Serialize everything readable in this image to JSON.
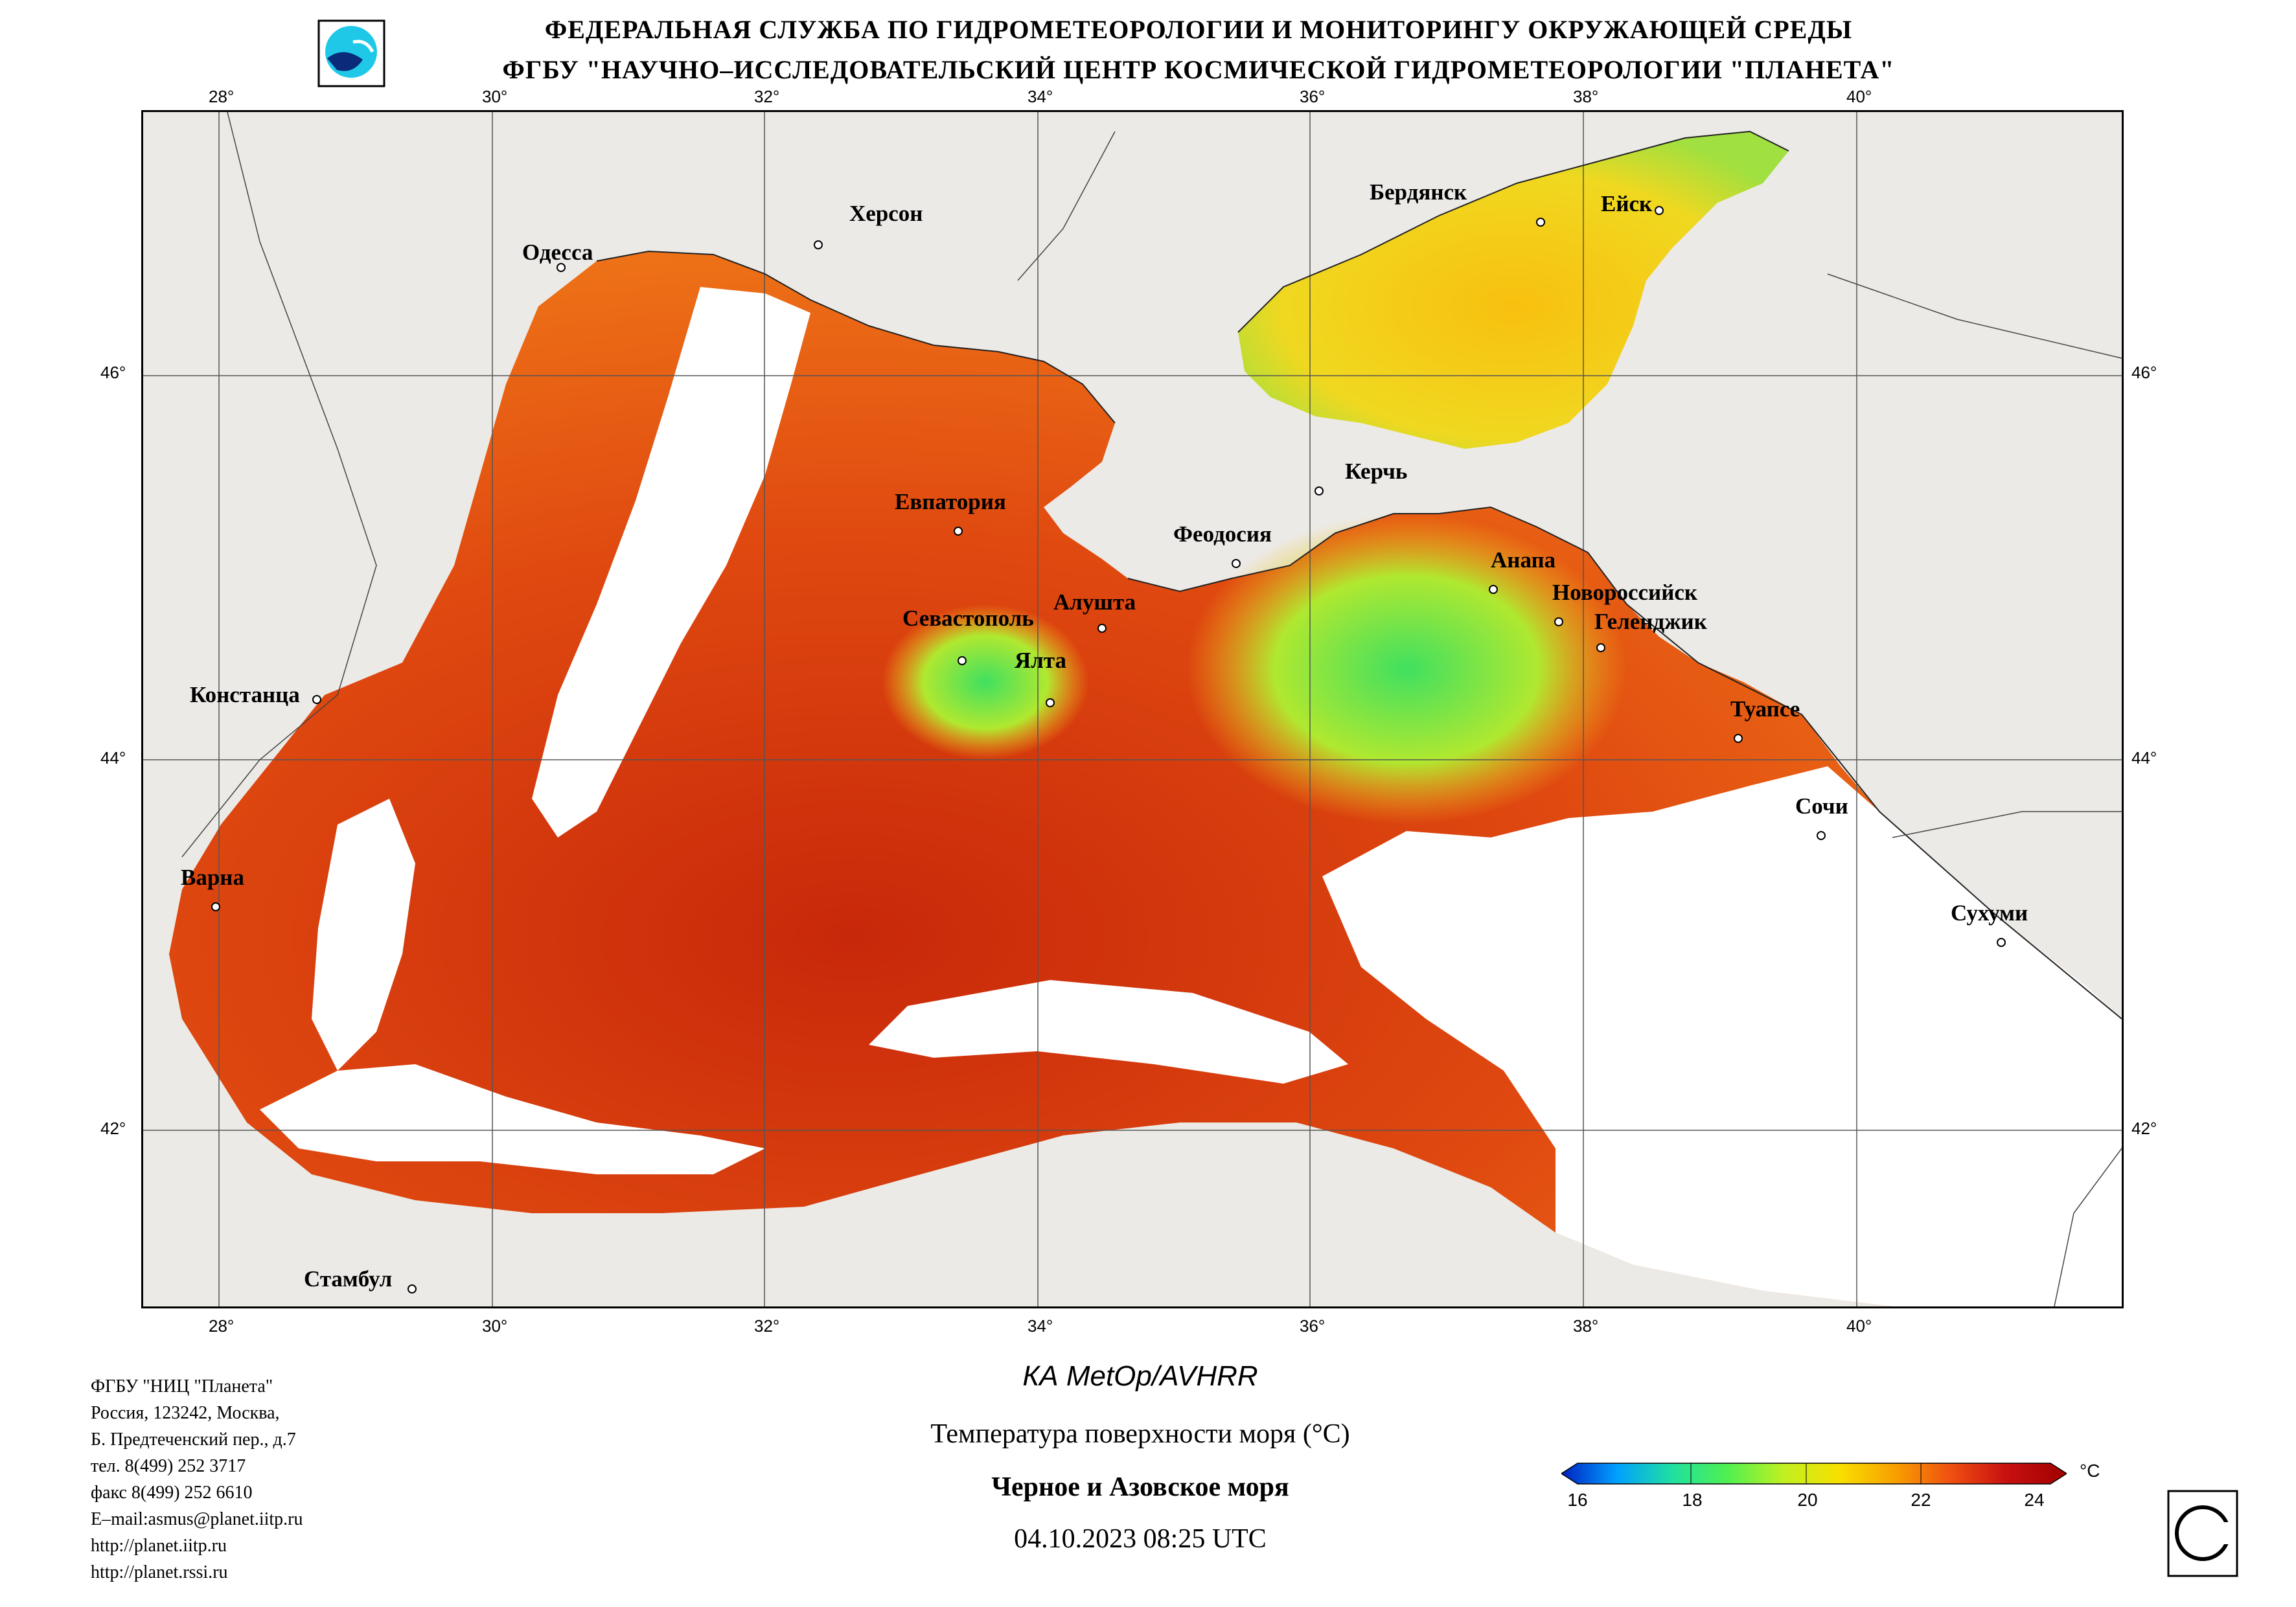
{
  "header": {
    "line1": "ФЕДЕРАЛЬНАЯ СЛУЖБА ПО ГИДРОМЕТЕОРОЛОГИИ И МОНИТОРИНГУ ОКРУЖАЮЩЕЙ СРЕДЫ",
    "line2": "ФГБУ \"НАУЧНО–ИССЛЕДОВАТЕЛЬСКИЙ ЦЕНТР КОСМИЧЕСКОЙ ГИДРОМЕТЕОРОЛОГИИ \"ПЛАНЕТА\""
  },
  "map": {
    "lon_labels": [
      "28°",
      "30°",
      "32°",
      "34°",
      "36°",
      "38°",
      "40°"
    ],
    "lat_labels": [
      "46°",
      "44°",
      "42°"
    ],
    "cities": [
      {
        "name": "Одесса"
      },
      {
        "name": "Херсон"
      },
      {
        "name": "Бердянск"
      },
      {
        "name": "Ейск"
      },
      {
        "name": "Керчь"
      },
      {
        "name": "Евпатория"
      },
      {
        "name": "Феодосия"
      },
      {
        "name": "Анапа"
      },
      {
        "name": "Алушта"
      },
      {
        "name": "Новороссийск"
      },
      {
        "name": "Севастополь"
      },
      {
        "name": "Геленджик"
      },
      {
        "name": "Ялта"
      },
      {
        "name": "Констанца"
      },
      {
        "name": "Туапсе"
      },
      {
        "name": "Сочи"
      },
      {
        "name": "Варна"
      },
      {
        "name": "Сухуми"
      },
      {
        "name": "Стамбул"
      }
    ],
    "colors": {
      "land": "#eceae6",
      "cloud": "#ffffff",
      "sst_warm": "#c8280a",
      "sst_mid": "#f07818",
      "sst_cool": "#f8d010",
      "sst_cold": "#50e050"
    }
  },
  "footer": {
    "org": "ФГБУ \"НИЦ \"Планета\"",
    "address1": "Россия, 123242, Москва,",
    "address2": "Б. Предтеченский пер., д.7",
    "phone": "тел. 8(499) 252 3717",
    "fax": "факс 8(499) 252 6610",
    "email": "E–mail:asmus@planet.iitp.ru",
    "url1": "http://planet.iitp.ru",
    "url2": "http://planet.rssi.ru"
  },
  "caption": {
    "satellite": "КА MetOp/AVHRR",
    "parameter": "Температура поверхности моря (°С)",
    "region": "Черное и Азовское моря",
    "datetime": "04.10.2023 08:25 UTC"
  },
  "colorbar": {
    "ticks": [
      "16",
      "18",
      "20",
      "22",
      "24"
    ],
    "unit": "°С",
    "colors": [
      "#0020c0",
      "#00a0ff",
      "#20e0a0",
      "#50f050",
      "#c0f020",
      "#f8e000",
      "#f8a000",
      "#f05010",
      "#c81010",
      "#a00000"
    ]
  }
}
